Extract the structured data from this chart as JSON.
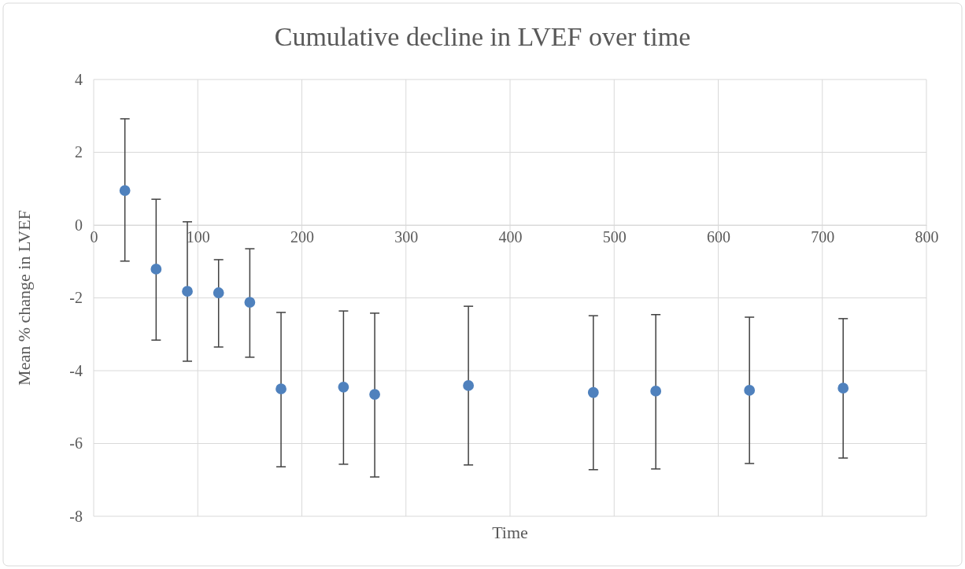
{
  "chart_data": {
    "type": "scatter",
    "title": "Cumulative decline in LVEF over time",
    "xlabel": "Time",
    "ylabel": "Mean % change in LVEF",
    "x": [
      30,
      60,
      90,
      120,
      150,
      180,
      240,
      270,
      360,
      480,
      540,
      630,
      720
    ],
    "values": [
      0.95,
      -1.21,
      -1.82,
      -1.86,
      -2.12,
      -4.5,
      -4.45,
      -4.65,
      -4.41,
      -4.6,
      -4.56,
      -4.54,
      -4.48
    ],
    "errors": [
      [
        -0.99,
        2.92
      ],
      [
        -3.16,
        0.71
      ],
      [
        -3.74,
        0.09
      ],
      [
        -3.35,
        -0.95
      ],
      [
        -3.63,
        -0.65
      ],
      [
        -6.64,
        -2.4
      ],
      [
        -6.57,
        -2.36
      ],
      [
        -6.92,
        -2.42
      ],
      [
        -6.59,
        -2.23
      ],
      [
        -6.72,
        -2.49
      ],
      [
        -6.7,
        -2.46
      ],
      [
        -6.55,
        -2.53
      ],
      [
        -6.4,
        -2.57
      ]
    ],
    "color": "#4f81bd",
    "marker": "circle",
    "grid": true,
    "xlim": [
      0,
      800
    ],
    "xticks": [
      0,
      100,
      200,
      300,
      400,
      500,
      600,
      700,
      800
    ],
    "ylim": [
      -8,
      4
    ],
    "yticks": [
      -8,
      -6,
      -4,
      -2,
      0,
      2,
      4
    ]
  }
}
